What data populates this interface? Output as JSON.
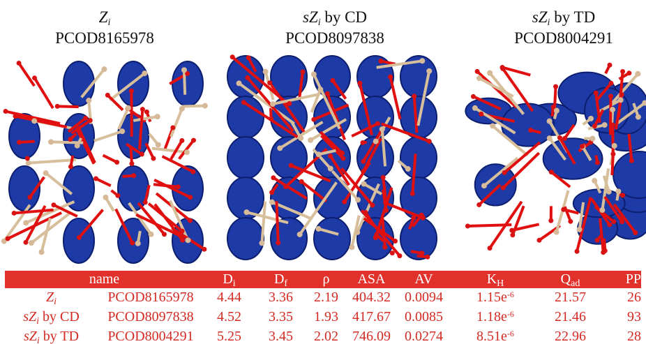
{
  "figure": {
    "panels": [
      {
        "caption": {
          "italic": "Z",
          "sub": "i"
        },
        "code": "PCOD8165978"
      },
      {
        "caption": {
          "italic": "sZ",
          "sub": "i",
          "rest": " by CD"
        },
        "code": "PCOD8097838"
      },
      {
        "caption": {
          "italic": "sZ",
          "sub": "i",
          "rest": " by TD"
        },
        "code": "PCOD8004291"
      }
    ]
  },
  "table": {
    "header": [
      {
        "text": "name"
      },
      {
        "text": "D",
        "sub": "i"
      },
      {
        "text": "D",
        "sub": "f"
      },
      {
        "text": "ρ"
      },
      {
        "text": "ASA"
      },
      {
        "text": "AV"
      },
      {
        "text": "K",
        "sub": "H"
      },
      {
        "text": "Q",
        "sub": "ad"
      },
      {
        "text": "PP"
      }
    ],
    "rows": [
      [
        {
          "italic": "Z",
          "sub": "i"
        },
        "PCOD8165978",
        "4.44",
        "3.36",
        "2.19",
        "404.32",
        "0.0094",
        {
          "base": "1.15e",
          "sup": "-6"
        },
        "21.57",
        "26"
      ],
      [
        {
          "italic": "sZ",
          "sub": "i",
          "rest": " by CD"
        },
        "PCOD8097838",
        "4.52",
        "3.35",
        "1.93",
        "417.67",
        "0.0085",
        {
          "base": "1.18e",
          "sup": "-6"
        },
        "21.46",
        "93"
      ],
      [
        {
          "italic": "sZ",
          "sub": "i",
          "rest": " by TD"
        },
        "PCOD8004291",
        "5.25",
        "3.45",
        "2.02",
        "746.09",
        "0.0274",
        {
          "base": "8.51e",
          "sup": "-6"
        },
        "22.96",
        "28"
      ]
    ]
  }
}
